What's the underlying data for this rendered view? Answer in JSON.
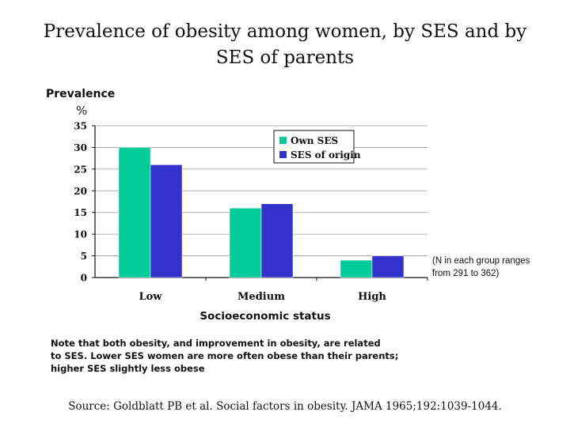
{
  "slide": {
    "title_line1": "Prevalence of obesity among women, by SES and by",
    "title_line2": "SES of parents",
    "ylabel_line1": "Prevalence",
    "ylabel_line2": "%",
    "xlabel": "Socioeconomic status",
    "annotation_line1": "(N in each group ranges",
    "annotation_line2": "from 291 to 362)",
    "note_line1": "Note that both obesity, and improvement in obesity, are related",
    "note_line2": "to SES.  Lower SES women are more often obese than their parents;",
    "note_line3": "higher SES slightly less obese",
    "source": "Source: Goldblatt PB et al.  Social factors in obesity.  JAMA 1965;192:1039-1044."
  },
  "chart_data": {
    "type": "bar",
    "categories": [
      "Low",
      "Medium",
      "High"
    ],
    "series": [
      {
        "name": "Own SES",
        "values": [
          30,
          16,
          4
        ],
        "color": "#00cc99"
      },
      {
        "name": "SES of origin",
        "values": [
          26,
          17,
          5
        ],
        "color": "#3333cc"
      }
    ],
    "yticks": [
      0,
      5,
      10,
      15,
      20,
      25,
      30,
      35
    ],
    "ylim": [
      0,
      35
    ],
    "grid": true,
    "legend_position": "top-right"
  }
}
